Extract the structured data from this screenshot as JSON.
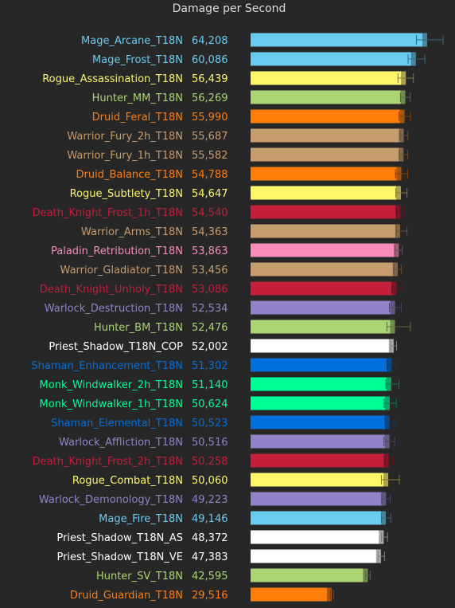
{
  "chart_data": {
    "type": "bar",
    "orientation": "horizontal",
    "title": "Damage per Second",
    "xlabel": "",
    "ylabel": "",
    "xlim": [
      0,
      70000
    ],
    "grid": false,
    "legend": "none",
    "background": "#272727",
    "categories": [
      "Mage_Arcane_T18N",
      "Mage_Frost_T18N",
      "Rogue_Assassination_T18N",
      "Hunter_MM_T18N",
      "Druid_Feral_T18N",
      "Warrior_Fury_2h_T18N",
      "Warrior_Fury_1h_T18N",
      "Druid_Balance_T18N",
      "Rogue_Subtlety_T18N",
      "Death_Knight_Frost_1h_T18N",
      "Warrior_Arms_T18N",
      "Paladin_Retribution_T18N",
      "Warrior_Gladiator_T18N",
      "Death_Knight_Unholy_T18N",
      "Warlock_Destruction_T18N",
      "Hunter_BM_T18N",
      "Priest_Shadow_T18N_COP",
      "Shaman_Enhancement_T18N",
      "Monk_Windwalker_2h_T18N",
      "Monk_Windwalker_1h_T18N",
      "Shaman_Elemental_T18N",
      "Warlock_Affliction_T18N",
      "Death_Knight_Frost_2h_T18N",
      "Rogue_Combat_T18N",
      "Warlock_Demonology_T18N",
      "Mage_Fire_T18N",
      "Priest_Shadow_T18N_AS",
      "Priest_Shadow_T18N_VE",
      "Hunter_SV_T18N",
      "Druid_Guardian_T18N"
    ],
    "value_labels": [
      "64,208",
      "60,086",
      "56,439",
      "56,269",
      "55,990",
      "55,687",
      "55,582",
      "54,788",
      "54,647",
      "54,540",
      "54,363",
      "53,863",
      "53,456",
      "53,086",
      "52,534",
      "52,476",
      "52,002",
      "51,302",
      "51,140",
      "50,624",
      "50,523",
      "50,516",
      "50,258",
      "50,060",
      "49,223",
      "49,146",
      "48,372",
      "47,383",
      "42,595",
      "29,516"
    ],
    "values": [
      64208,
      60086,
      56439,
      56269,
      55990,
      55687,
      55582,
      54788,
      54647,
      54540,
      54363,
      53863,
      53456,
      53086,
      52534,
      52476,
      52002,
      51302,
      51140,
      50624,
      50523,
      50516,
      50258,
      50060,
      49223,
      49146,
      48372,
      47383,
      42595,
      29516
    ],
    "error_low": [
      60300,
      57300,
      53600,
      54500,
      54000,
      54300,
      54100,
      52700,
      52800,
      52900,
      52900,
      52500,
      52100,
      51400,
      50500,
      49600,
      51000,
      49600,
      49200,
      48600,
      48900,
      48500,
      48600,
      47600,
      47700,
      47600,
      47600,
      46300,
      41800,
      29000
    ],
    "error_high": [
      70000,
      63400,
      59200,
      58000,
      58200,
      57200,
      57100,
      57100,
      56900,
      55900,
      56900,
      55200,
      54800,
      55600,
      54800,
      58100,
      53100,
      52800,
      54000,
      53000,
      52700,
      52400,
      51900,
      54100,
      50800,
      51000,
      49800,
      48700,
      43500,
      30200
    ],
    "bar_colors": [
      "#69ccf0",
      "#69ccf0",
      "#fff569",
      "#abd473",
      "#ff7d0a",
      "#c79c6e",
      "#c79c6e",
      "#ff7d0a",
      "#fff569",
      "#c41f3b",
      "#c79c6e",
      "#f58cba",
      "#c79c6e",
      "#c41f3b",
      "#9482c9",
      "#abd473",
      "#ffffff",
      "#0070de",
      "#00ff96",
      "#00ff96",
      "#0070de",
      "#9482c9",
      "#c41f3b",
      "#fff569",
      "#9482c9",
      "#69ccf0",
      "#ffffff",
      "#ffffff",
      "#abd473",
      "#ff7d0a"
    ]
  }
}
